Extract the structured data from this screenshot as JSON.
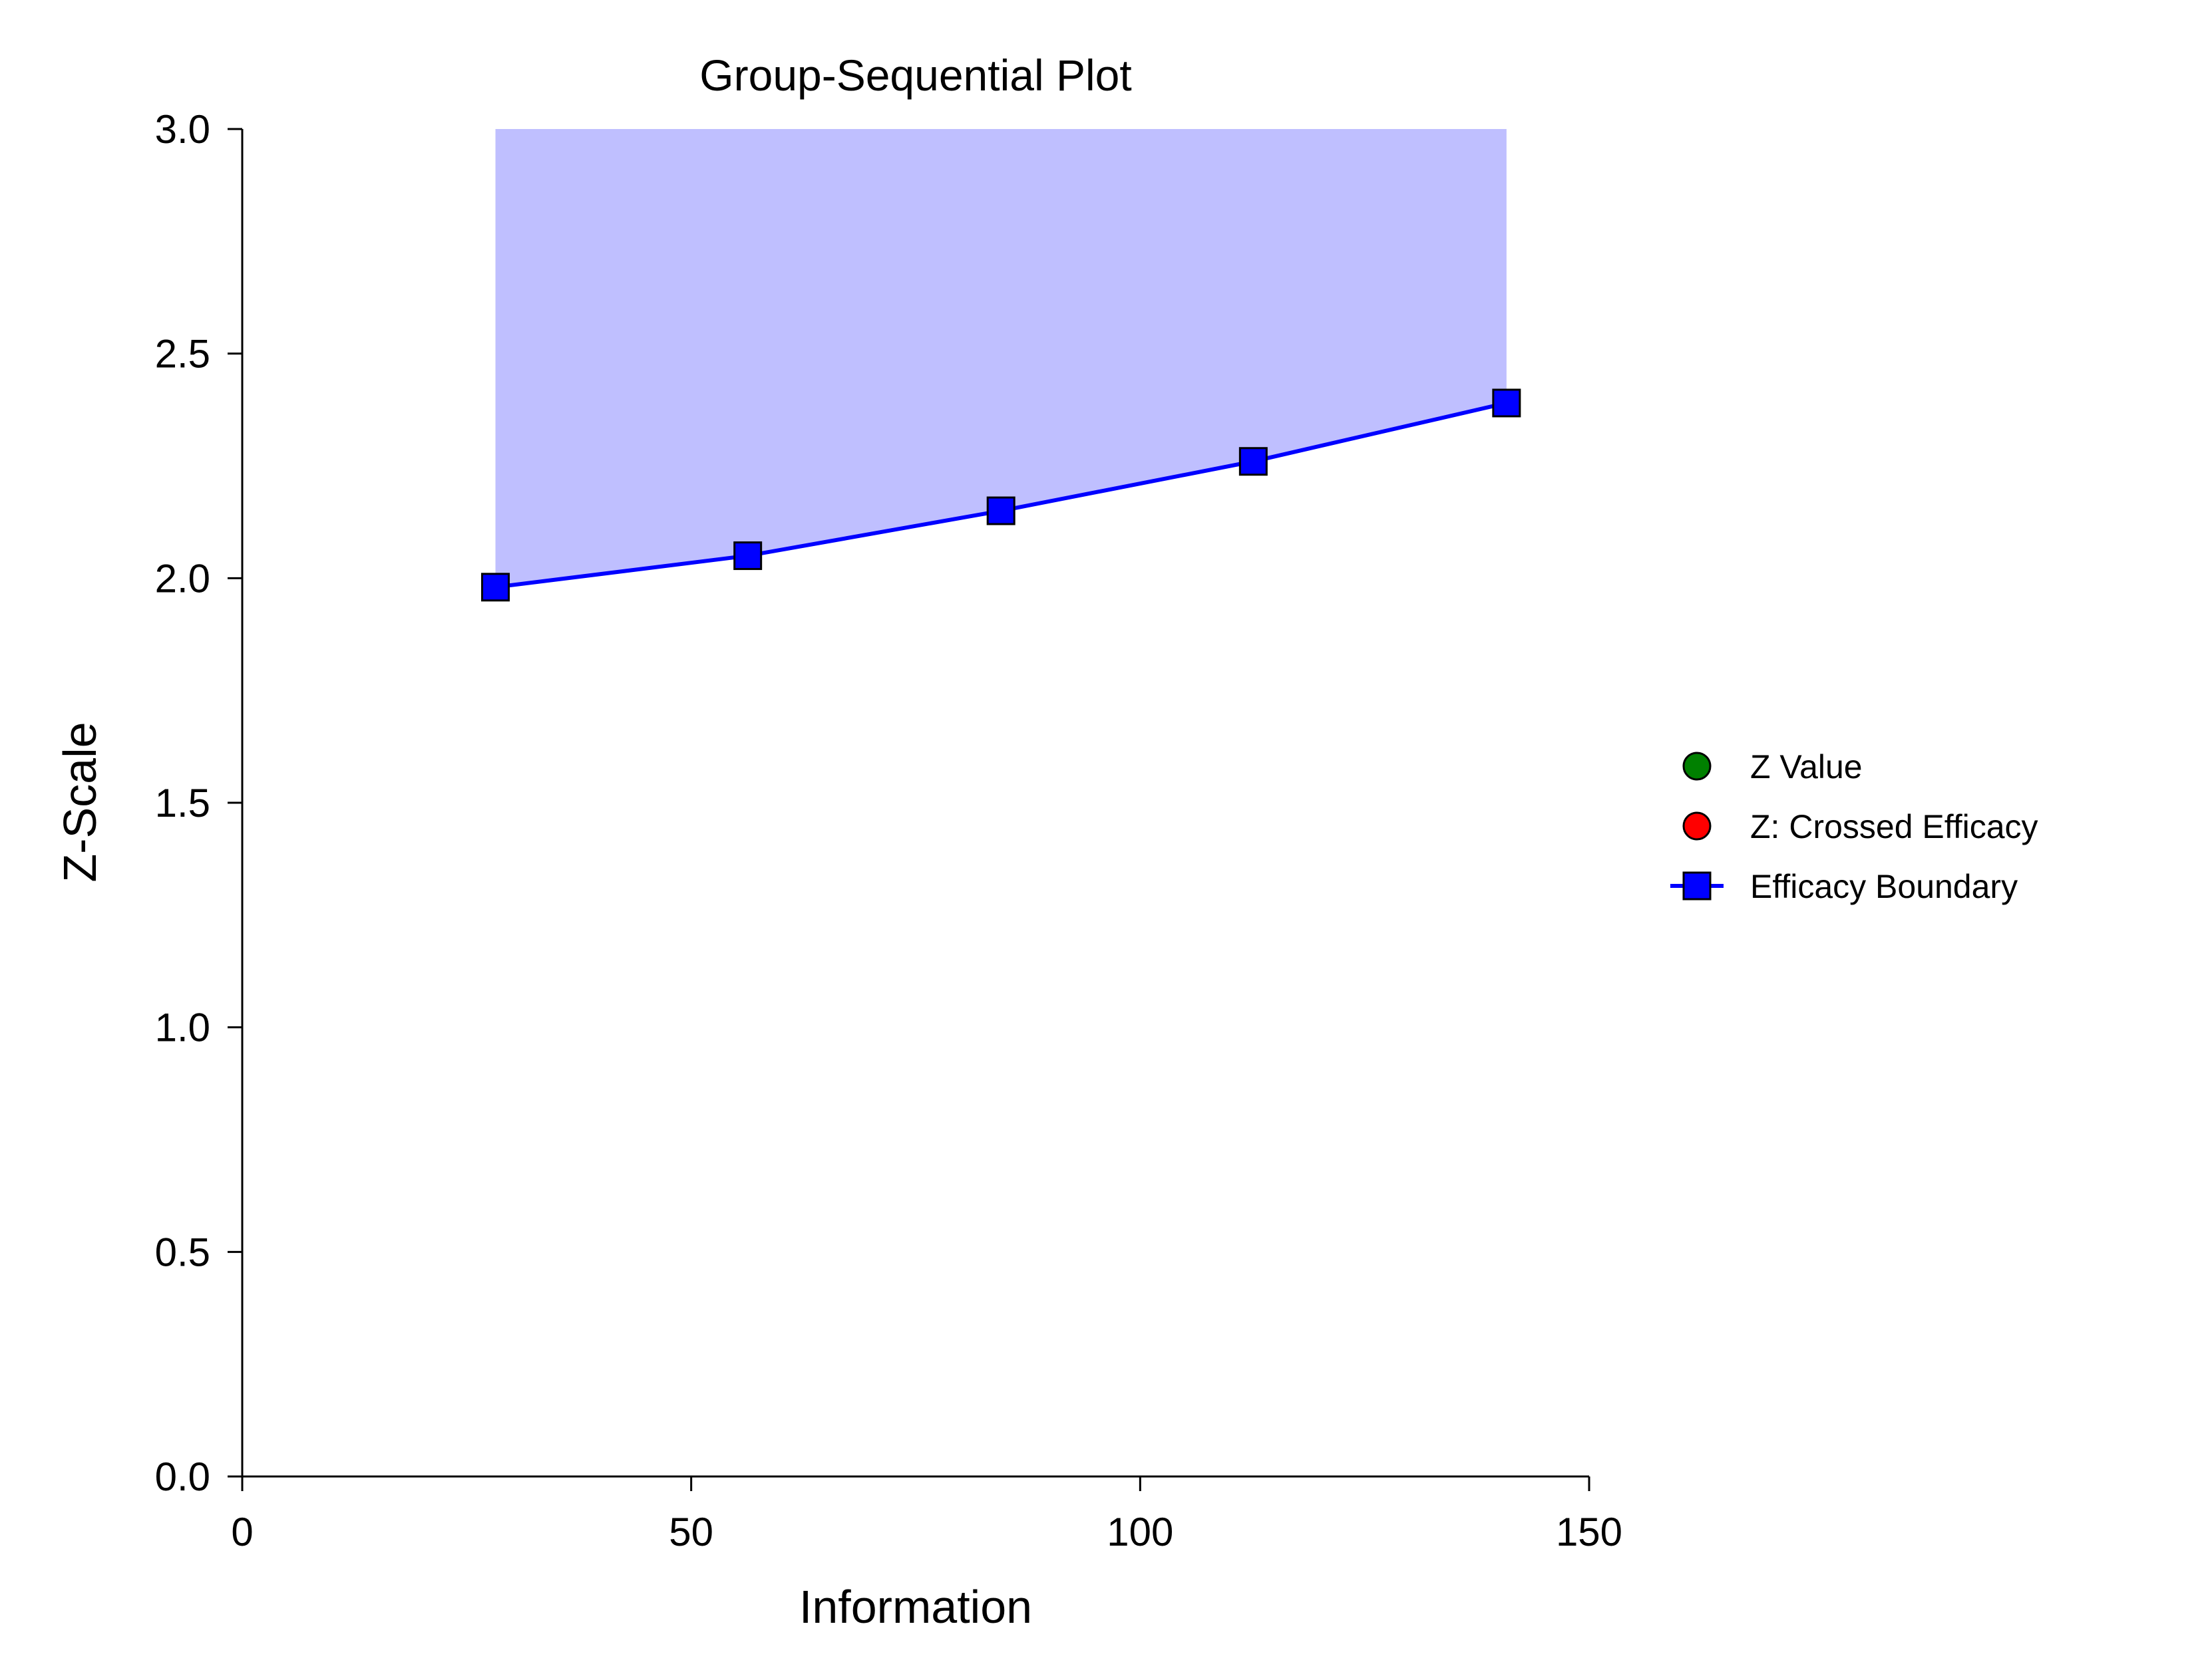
{
  "chart_data": {
    "type": "line",
    "title": "Group-Sequential Plot",
    "xlabel": "Information",
    "ylabel": "Z-Scale",
    "xlim": [
      0,
      150
    ],
    "ylim": [
      0,
      3
    ],
    "x_ticks": [
      "0",
      "50",
      "100",
      "150"
    ],
    "y_ticks": [
      "0.0",
      "0.5",
      "1.0",
      "1.5",
      "2.0",
      "2.5",
      "3.0"
    ],
    "grid": false,
    "legend_position": "right",
    "series": [
      {
        "name": "Z Value",
        "marker": "circle",
        "color": "#008000",
        "x": [],
        "y": []
      },
      {
        "name": "Z: Crossed Efficacy",
        "marker": "circle",
        "color": "#ff0000",
        "x": [],
        "y": []
      },
      {
        "name": "Efficacy Boundary",
        "marker": "square",
        "color": "#0000ff",
        "x": [
          28.2,
          56.3,
          84.5,
          112.6,
          140.8
        ],
        "y": [
          1.98,
          2.05,
          2.15,
          2.26,
          2.39
        ]
      }
    ],
    "efficacy_region_color": "#bfbfff"
  }
}
